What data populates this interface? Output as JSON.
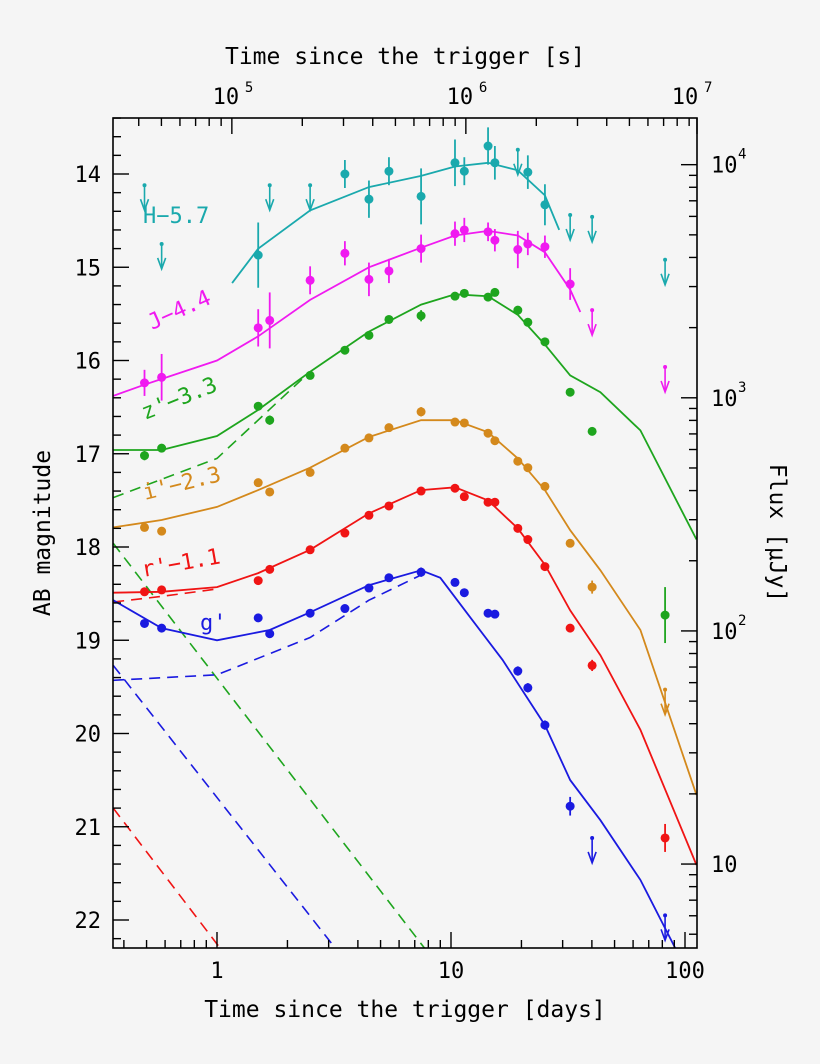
{
  "chart_data": {
    "type": "scatter",
    "xlabel": "Time since the trigger [days]",
    "xlabel_top": "Time since the trigger [s]",
    "ylabel": "AB magnitude",
    "ylabel_right": "Flux [μJy]",
    "xscale": "log",
    "xlim": [
      0.36,
      112
    ],
    "ylim": [
      22.3,
      13.4
    ],
    "x_ticks": [
      {
        "v": 1,
        "label": "1"
      },
      {
        "v": 10,
        "label": "10"
      },
      {
        "v": 100,
        "label": "100"
      }
    ],
    "x_top_ticks": [
      {
        "v": 100000,
        "label": "10",
        "exp": "5"
      },
      {
        "v": 1000000,
        "label": "10",
        "exp": "6"
      },
      {
        "v": 10000000,
        "label": "10",
        "exp": "7"
      }
    ],
    "y_ticks": [
      "14",
      "15",
      "16",
      "17",
      "18",
      "19",
      "20",
      "21",
      "22"
    ],
    "y_right_ticks": [
      {
        "v": 10000,
        "label": "10",
        "exp": "4"
      },
      {
        "v": 1000,
        "label": "10",
        "exp": "3"
      },
      {
        "v": 100,
        "label": "10",
        "exp": "2"
      },
      {
        "v": 10,
        "label": "10",
        "exp": ""
      }
    ],
    "grid": false,
    "series": [
      {
        "name": "H−5.7",
        "color": "#1aa9ad",
        "points": [
          [
            1.5,
            14.87,
            0.35
          ],
          [
            3.52,
            14.0,
            0.15
          ],
          [
            4.46,
            14.27,
            0.2
          ],
          [
            5.43,
            13.97,
            0.15
          ],
          [
            7.45,
            14.24,
            0.3
          ],
          [
            10.4,
            13.88,
            0.25
          ],
          [
            11.4,
            13.97,
            0.15
          ],
          [
            14.4,
            13.7,
            0.2
          ],
          [
            15.4,
            13.88,
            0.18
          ],
          [
            21.3,
            13.98,
            0.18
          ],
          [
            25.2,
            14.33,
            0.22
          ]
        ],
        "upper_limits": [
          [
            0.49,
            14.12
          ],
          [
            0.58,
            14.75
          ],
          [
            1.68,
            14.12
          ],
          [
            2.5,
            14.12
          ],
          [
            19.3,
            13.74
          ],
          [
            32.3,
            14.44
          ],
          [
            40.1,
            14.46
          ],
          [
            82.2,
            14.92
          ]
        ],
        "model": [
          [
            1.16,
            15.17
          ],
          [
            1.5,
            14.8
          ],
          [
            2.5,
            14.39
          ],
          [
            4.46,
            14.14
          ],
          [
            7.45,
            14.02
          ],
          [
            10.4,
            13.92
          ],
          [
            14.4,
            13.88
          ],
          [
            19.3,
            13.96
          ],
          [
            25.2,
            14.23
          ],
          [
            29,
            14.6
          ]
        ]
      },
      {
        "name": "J−4.4",
        "color": "#f01af0",
        "points": [
          [
            0.49,
            16.24,
            0.14
          ],
          [
            0.58,
            16.18,
            0.25
          ],
          [
            1.5,
            15.65,
            0.2
          ],
          [
            1.68,
            15.57,
            0.3
          ],
          [
            2.5,
            15.14,
            0.15
          ],
          [
            3.52,
            14.85,
            0.13
          ],
          [
            4.46,
            15.13,
            0.18
          ],
          [
            5.43,
            15.04,
            0.13
          ],
          [
            7.45,
            14.8,
            0.15
          ],
          [
            10.4,
            14.64,
            0.13
          ],
          [
            11.4,
            14.6,
            0.13
          ],
          [
            14.4,
            14.62,
            0.1
          ],
          [
            15.4,
            14.71,
            0.12
          ],
          [
            19.3,
            14.81,
            0.2
          ],
          [
            21.3,
            14.75,
            0.12
          ],
          [
            25.2,
            14.78,
            0.12
          ],
          [
            32.3,
            15.18,
            0.17
          ]
        ],
        "upper_limits": [
          [
            40.1,
            15.46
          ],
          [
            82.2,
            16.07
          ]
        ],
        "model": [
          [
            0.36,
            16.38
          ],
          [
            0.49,
            16.26
          ],
          [
            1,
            16.0
          ],
          [
            1.5,
            15.74
          ],
          [
            2.5,
            15.35
          ],
          [
            4.46,
            15.0
          ],
          [
            7.45,
            14.79
          ],
          [
            10.4,
            14.66
          ],
          [
            14.4,
            14.61
          ],
          [
            19.3,
            14.66
          ],
          [
            25.2,
            14.84
          ],
          [
            32.3,
            15.24
          ],
          [
            35.7,
            15.48
          ]
        ]
      },
      {
        "name": "z'−3.3",
        "color": "#1ea51e",
        "points": [
          [
            0.49,
            17.02,
            0.05
          ],
          [
            0.58,
            16.94,
            0.03
          ],
          [
            1.5,
            16.49,
            0.03
          ],
          [
            1.68,
            16.64,
            0.05
          ],
          [
            2.5,
            16.16,
            0.03
          ],
          [
            3.52,
            15.89,
            0.03
          ],
          [
            4.46,
            15.73,
            0.03
          ],
          [
            5.43,
            15.56,
            0.03
          ],
          [
            7.45,
            15.52,
            0.06
          ],
          [
            10.4,
            15.31,
            0.03
          ],
          [
            11.4,
            15.28,
            0.03
          ],
          [
            14.4,
            15.32,
            0.03
          ],
          [
            15.4,
            15.27,
            0.03
          ],
          [
            19.3,
            15.46,
            0.03
          ],
          [
            21.3,
            15.59,
            0.03
          ],
          [
            25.2,
            15.8,
            0.03
          ],
          [
            32.3,
            16.34,
            0.03
          ],
          [
            40.1,
            16.76,
            0.03
          ],
          [
            82.2,
            18.73,
            0.3
          ]
        ],
        "upper_limits": [],
        "model": [
          [
            0.36,
            16.96
          ],
          [
            0.58,
            16.96
          ],
          [
            1,
            16.81
          ],
          [
            1.5,
            16.53
          ],
          [
            2.5,
            16.12
          ],
          [
            4.46,
            15.69
          ],
          [
            7.45,
            15.4
          ],
          [
            10.4,
            15.29
          ],
          [
            14.4,
            15.31
          ],
          [
            19.3,
            15.51
          ],
          [
            25.2,
            15.83
          ],
          [
            32.3,
            16.16
          ],
          [
            43.5,
            16.34
          ],
          [
            64.5,
            16.75
          ],
          [
            112,
            17.92
          ]
        ],
        "dashed": [
          [
            [
              0.36,
              17.47
            ],
            [
              1,
              17.05
            ],
            [
              2.5,
              16.12
            ]
          ],
          [
            [
              0.36,
              17.96
            ],
            [
              7.7,
              22.3
            ]
          ]
        ]
      },
      {
        "name": "i'−2.3",
        "color": "#d4891c",
        "points": [
          [
            0.49,
            17.79,
            0.03
          ],
          [
            0.58,
            17.83,
            0.03
          ],
          [
            1.5,
            17.31,
            0.03
          ],
          [
            1.68,
            17.41,
            0.03
          ],
          [
            2.5,
            17.2,
            0.03
          ],
          [
            3.52,
            16.94,
            0.03
          ],
          [
            4.46,
            16.83,
            0.03
          ],
          [
            5.43,
            16.72,
            0.03
          ],
          [
            7.45,
            16.55,
            0.05
          ],
          [
            10.4,
            16.66,
            0.03
          ],
          [
            11.4,
            16.67,
            0.03
          ],
          [
            14.4,
            16.78,
            0.03
          ],
          [
            15.4,
            16.86,
            0.03
          ],
          [
            19.3,
            17.08,
            0.03
          ],
          [
            21.3,
            17.15,
            0.03
          ],
          [
            25.2,
            17.35,
            0.03
          ],
          [
            32.3,
            17.96,
            0.03
          ],
          [
            40.1,
            18.43,
            0.07
          ]
        ],
        "upper_limits": [
          [
            82.2,
            19.53
          ]
        ],
        "model": [
          [
            0.36,
            17.79
          ],
          [
            0.58,
            17.71
          ],
          [
            1,
            17.57
          ],
          [
            1.5,
            17.39
          ],
          [
            2.5,
            17.15
          ],
          [
            4.46,
            16.82
          ],
          [
            7.45,
            16.64
          ],
          [
            10.4,
            16.64
          ],
          [
            14.4,
            16.77
          ],
          [
            19.3,
            17.05
          ],
          [
            25.2,
            17.39
          ],
          [
            32.3,
            17.82
          ],
          [
            43.5,
            18.25
          ],
          [
            64.5,
            18.89
          ],
          [
            112,
            20.66
          ]
        ]
      },
      {
        "name": "r'−1.1",
        "color": "#f01414",
        "points": [
          [
            0.49,
            18.48,
            0.03
          ],
          [
            0.58,
            18.46,
            0.03
          ],
          [
            1.5,
            18.36,
            0.03
          ],
          [
            1.68,
            18.24,
            0.03
          ],
          [
            2.5,
            18.03,
            0.03
          ],
          [
            3.52,
            17.85,
            0.03
          ],
          [
            4.46,
            17.66,
            0.03
          ],
          [
            5.43,
            17.56,
            0.03
          ],
          [
            7.45,
            17.4,
            0.03
          ],
          [
            10.4,
            17.37,
            0.03
          ],
          [
            11.4,
            17.46,
            0.03
          ],
          [
            14.4,
            17.52,
            0.03
          ],
          [
            15.4,
            17.52,
            0.03
          ],
          [
            19.3,
            17.8,
            0.03
          ],
          [
            21.3,
            17.92,
            0.03
          ],
          [
            25.2,
            18.21,
            0.03
          ],
          [
            32.3,
            18.87,
            0.03
          ],
          [
            40.1,
            19.27,
            0.06
          ],
          [
            82.2,
            21.12,
            0.15
          ]
        ],
        "upper_limits": [],
        "model": [
          [
            0.36,
            18.49
          ],
          [
            0.58,
            18.48
          ],
          [
            1,
            18.43
          ],
          [
            1.5,
            18.28
          ],
          [
            2.5,
            18.03
          ],
          [
            4.46,
            17.64
          ],
          [
            7.45,
            17.39
          ],
          [
            10.4,
            17.36
          ],
          [
            14.4,
            17.5
          ],
          [
            19.3,
            17.8
          ],
          [
            25.2,
            18.19
          ],
          [
            32.3,
            18.68
          ],
          [
            43.5,
            19.16
          ],
          [
            64.5,
            19.96
          ],
          [
            112,
            21.41
          ]
        ],
        "dashed": [
          [
            [
              0.36,
              18.59
            ],
            [
              0.58,
              18.53
            ],
            [
              1,
              18.45
            ]
          ],
          [
            [
              0.36,
              20.8
            ],
            [
              1.03,
              22.3
            ]
          ]
        ]
      },
      {
        "name": "g'",
        "color": "#1a1ae0",
        "points": [
          [
            0.49,
            18.82,
            0.03
          ],
          [
            0.58,
            18.87,
            0.03
          ],
          [
            1.5,
            18.76,
            0.03
          ],
          [
            1.68,
            18.93,
            0.03
          ],
          [
            2.5,
            18.71,
            0.03
          ],
          [
            3.52,
            18.66,
            0.03
          ],
          [
            4.46,
            18.44,
            0.03
          ],
          [
            5.43,
            18.33,
            0.03
          ],
          [
            7.45,
            18.27,
            0.05
          ],
          [
            10.4,
            18.38,
            0.03
          ],
          [
            11.4,
            18.49,
            0.03
          ],
          [
            14.4,
            18.71,
            0.03
          ],
          [
            15.4,
            18.72,
            0.03
          ],
          [
            19.3,
            19.33,
            0.05
          ],
          [
            21.3,
            19.51,
            0.05
          ],
          [
            25.2,
            19.91,
            0.05
          ],
          [
            32.3,
            20.78,
            0.1
          ]
        ],
        "upper_limits": [
          [
            40.1,
            21.12
          ],
          [
            82.2,
            21.95
          ]
        ],
        "model": [
          [
            0.36,
            18.57
          ],
          [
            0.58,
            18.87
          ],
          [
            1,
            19.0
          ],
          [
            1.68,
            18.89
          ],
          [
            2.5,
            18.7
          ],
          [
            4.46,
            18.41
          ],
          [
            7.45,
            18.25
          ],
          [
            9.0,
            18.33
          ],
          [
            12.3,
            18.78
          ],
          [
            16.6,
            19.21
          ],
          [
            25.2,
            19.91
          ],
          [
            32.3,
            20.5
          ],
          [
            43.5,
            20.93
          ],
          [
            64.5,
            21.57
          ],
          [
            90.8,
            22.3
          ]
        ],
        "dashed": [
          [
            [
              0.36,
              19.43
            ],
            [
              1,
              19.37
            ],
            [
              2.5,
              18.97
            ],
            [
              4.46,
              18.57
            ],
            [
              7.45,
              18.3
            ]
          ],
          [
            [
              0.36,
              19.27
            ],
            [
              3.2,
              22.3
            ]
          ]
        ]
      }
    ]
  }
}
